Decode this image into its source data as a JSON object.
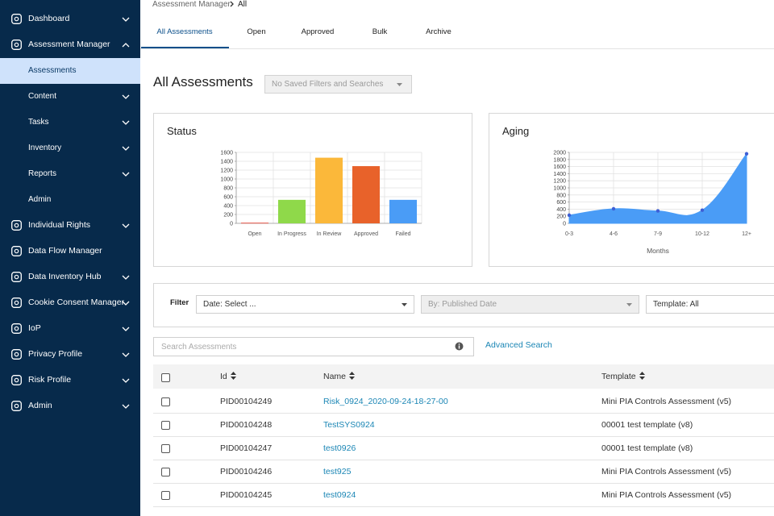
{
  "sidebar": {
    "items": [
      "Dashboard",
      "Assessment Manager",
      "Individual Rights",
      "Data Flow Manager",
      "Data Inventory Hub",
      "Cookie Consent Manager",
      "IoP",
      "Privacy Profile",
      "Risk Profile",
      "Admin"
    ],
    "assessment_manager_menu": [
      "Assessments",
      "Content",
      "Tasks",
      "Inventory",
      "Reports",
      "Admin"
    ]
  },
  "breadcrumb": [
    "Assessment Manager",
    "All"
  ],
  "tabs": [
    "All Assessments",
    "Open",
    "Approved",
    "Bulk",
    "Archive"
  ],
  "page_title": "All Assessments",
  "saved_filters": "No Saved Filters and Searches",
  "chart_data": [
    {
      "type": "bar",
      "title": "Status",
      "categories": [
        "Open",
        "In Progress",
        "In Review",
        "Approved",
        "Failed"
      ],
      "values": [
        15,
        530,
        1480,
        1290,
        530
      ],
      "colors": [
        "#e8584a",
        "#8fd94a",
        "#fbb83a",
        "#e8622a",
        "#4a9cf6"
      ],
      "ylim": [
        0,
        1600
      ],
      "yticks": [
        0,
        200,
        400,
        600,
        800,
        1000,
        1200,
        1400,
        1600
      ],
      "grid": true
    },
    {
      "type": "area",
      "title": "Aging",
      "x_label": "Months",
      "categories": [
        "0-3",
        "4-6",
        "7-9",
        "10-12",
        "12+"
      ],
      "values": [
        230,
        410,
        350,
        370,
        1960
      ],
      "color": "#4a9cf6",
      "marker_color": "#3d5fd6",
      "ylim": [
        0,
        2000
      ],
      "yticks": [
        0,
        200,
        400,
        600,
        800,
        1000,
        1200,
        1400,
        1600,
        1800,
        2000
      ],
      "grid": true
    }
  ],
  "filter": {
    "label": "Filter",
    "date": "Date: Select ...",
    "by": "By: Published Date",
    "template": "Template: All"
  },
  "search": {
    "placeholder": "Search Assessments",
    "advanced": "Advanced Search"
  },
  "table": {
    "columns": [
      "Id",
      "Name",
      "Template"
    ],
    "rows": [
      [
        "PID00104249",
        "Risk_0924_2020-09-24-18-27-00",
        "Mini PIA Controls Assessment (v5)"
      ],
      [
        "PID00104248",
        "TestSYS0924",
        "00001 test template (v8)"
      ],
      [
        "PID00104247",
        "test0926",
        "00001 test template (v8)"
      ],
      [
        "PID00104246",
        "test925",
        "Mini PIA Controls Assessment (v5)"
      ],
      [
        "PID00104245",
        "test0924",
        "Mini PIA Controls Assessment (v5)"
      ]
    ]
  }
}
